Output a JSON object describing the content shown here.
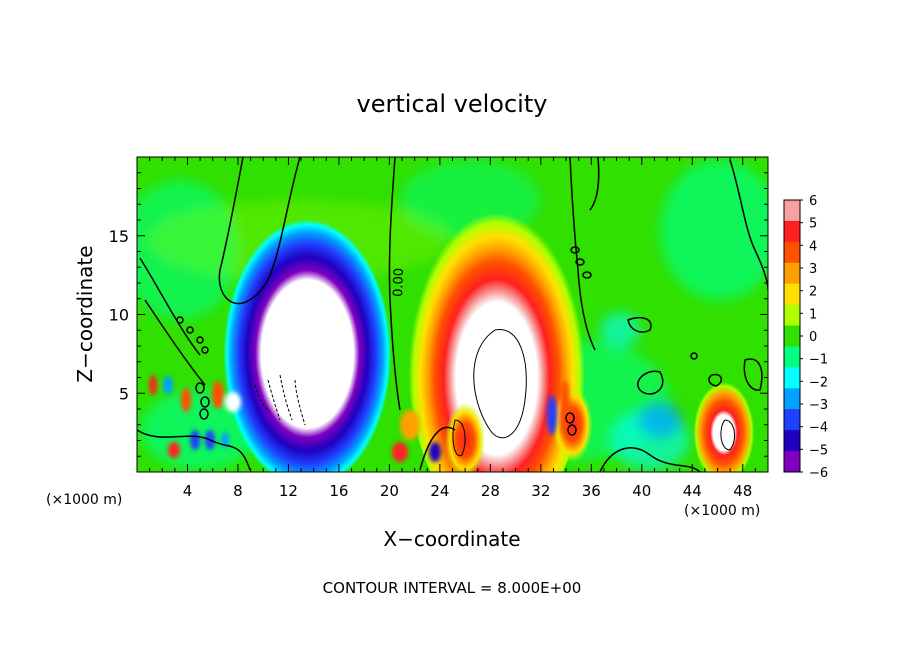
{
  "chart_data": {
    "type": "heatmap",
    "title": "vertical velocity",
    "xlabel": "X−coordinate",
    "ylabel": "Z−coordinate",
    "x_unit": "(×1000 m)",
    "x_unit_right": "(×1000 m)",
    "xlim": [
      0,
      50
    ],
    "ylim": [
      0,
      20
    ],
    "x_ticks": [
      4,
      8,
      12,
      16,
      20,
      24,
      28,
      32,
      36,
      40,
      44,
      48
    ],
    "y_ticks": [
      5,
      10,
      15
    ],
    "contour_label": "0.00",
    "contour_interval_text": "CONTOUR INTERVAL = 8.000E+00",
    "colorbar": {
      "ticks": [
        6,
        5,
        4,
        3,
        2,
        1,
        0,
        -1,
        -2,
        -3,
        -4,
        -5,
        -6
      ],
      "tick_labels": [
        "6",
        "5",
        "4",
        "3",
        "2",
        "1",
        "0",
        "−1",
        "−2",
        "−3",
        "−4",
        "−5",
        "−6"
      ],
      "colors": [
        "#f7a0a0",
        "#ff2020",
        "#ff5000",
        "#ffa000",
        "#ffe000",
        "#b0ff00",
        "#30e000",
        "#00ff80",
        "#00ffff",
        "#00a0ff",
        "#2040ff",
        "#2000c0",
        "#8000c0"
      ]
    },
    "features": [
      {
        "x": 13.5,
        "z": 7.5,
        "value": -12,
        "rx": 3.5,
        "rz": 4.5
      },
      {
        "x": 28.5,
        "z": 7.0,
        "value": 12,
        "rx": 4.0,
        "rz": 6.0
      },
      {
        "x": 46.5,
        "z": 2.5,
        "value": 8,
        "rx": 1.5,
        "rz": 2.0
      },
      {
        "x": 26.0,
        "z": 2.0,
        "value": 8,
        "rx": 1.0,
        "rz": 1.5
      },
      {
        "x": 34.5,
        "z": 3.0,
        "value": 5,
        "rx": 1.0,
        "rz": 1.5
      }
    ]
  }
}
